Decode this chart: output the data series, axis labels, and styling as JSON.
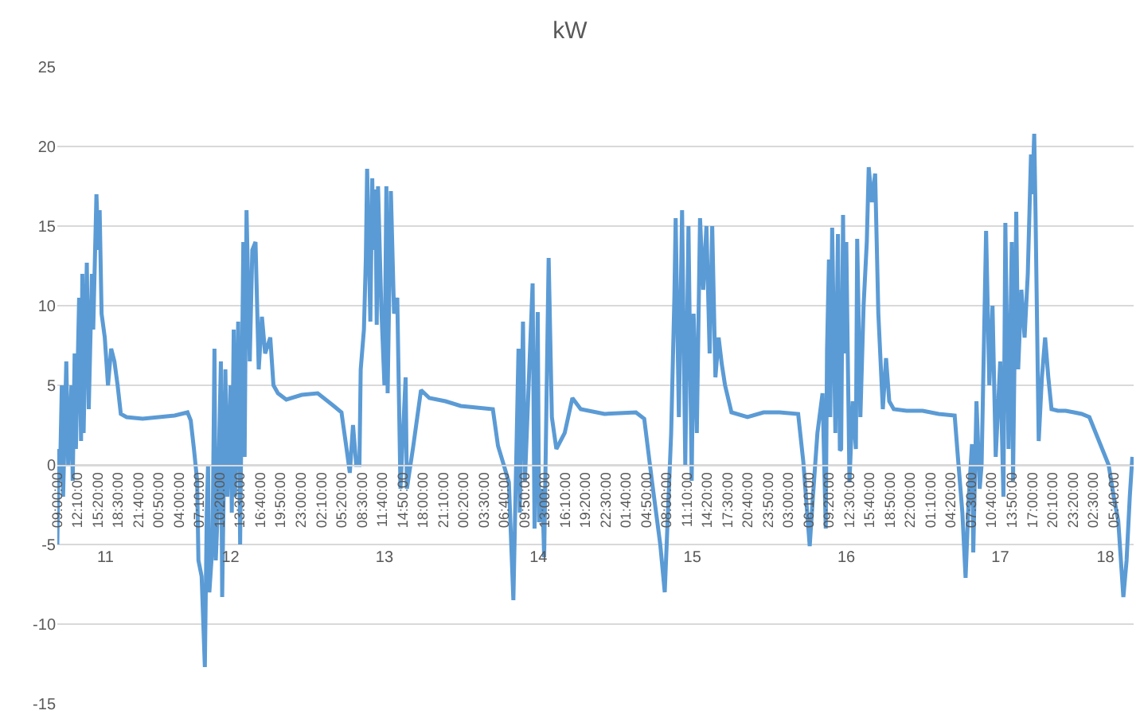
{
  "chart_data": {
    "type": "line",
    "title": "kW",
    "color": "#5b9bd5",
    "grid": "y",
    "ylim": [
      -15,
      25
    ],
    "yticks": [
      -15,
      -10,
      -5,
      0,
      5,
      10,
      15,
      20,
      25
    ],
    "xlim": [
      "--01-11T09:00",
      "--01-18T08:48"
    ],
    "xticks": [
      {
        "value": "--01-11T09:00",
        "label": "09:00:00"
      },
      {
        "value": "--01-11T12:10",
        "label": "12:10:00"
      },
      {
        "value": "--01-11T15:20",
        "label": "15:20:00"
      },
      {
        "value": "--01-11T18:30",
        "label": "18:30:00"
      },
      {
        "value": "--01-11T21:40",
        "label": "21:40:00"
      },
      {
        "value": "--01-12T00:50",
        "label": "00:50:00"
      },
      {
        "value": "--01-12T04:00",
        "label": "04:00:00"
      },
      {
        "value": "--01-12T07:10",
        "label": "07:10:00"
      },
      {
        "value": "--01-12T10:20",
        "label": "10:20:00"
      },
      {
        "value": "--01-12T13:30",
        "label": "13:30:00"
      },
      {
        "value": "--01-12T16:40",
        "label": "16:40:00"
      },
      {
        "value": "--01-12T19:50",
        "label": "19:50:00"
      },
      {
        "value": "--01-12T23:00",
        "label": "23:00:00"
      },
      {
        "value": "--01-13T02:10",
        "label": "02:10:00"
      },
      {
        "value": "--01-13T05:20",
        "label": "05:20:00"
      },
      {
        "value": "--01-13T08:30",
        "label": "08:30:00"
      },
      {
        "value": "--01-13T11:40",
        "label": "11:40:00"
      },
      {
        "value": "--01-13T14:50",
        "label": "14:50:00"
      },
      {
        "value": "--01-13T18:00",
        "label": "18:00:00"
      },
      {
        "value": "--01-13T21:10",
        "label": "21:10:00"
      },
      {
        "value": "--01-14T00:20",
        "label": "00:20:00"
      },
      {
        "value": "--01-14T03:30",
        "label": "03:30:00"
      },
      {
        "value": "--01-14T06:40",
        "label": "06:40:00"
      },
      {
        "value": "--01-14T09:50",
        "label": "09:50:00"
      },
      {
        "value": "--01-14T13:00",
        "label": "13:00:00"
      },
      {
        "value": "--01-14T16:10",
        "label": "16:10:00"
      },
      {
        "value": "--01-14T19:20",
        "label": "19:20:00"
      },
      {
        "value": "--01-14T22:30",
        "label": "22:30:00"
      },
      {
        "value": "--01-15T01:40",
        "label": "01:40:00"
      },
      {
        "value": "--01-15T04:50",
        "label": "04:50:00"
      },
      {
        "value": "--01-15T08:00",
        "label": "08:00:00"
      },
      {
        "value": "--01-15T11:10",
        "label": "11:10:00"
      },
      {
        "value": "--01-15T14:20",
        "label": "14:20:00"
      },
      {
        "value": "--01-15T17:30",
        "label": "17:30:00"
      },
      {
        "value": "--01-15T20:40",
        "label": "20:40:00"
      },
      {
        "value": "--01-15T23:50",
        "label": "23:50:00"
      },
      {
        "value": "--01-16T03:00",
        "label": "03:00:00"
      },
      {
        "value": "--01-16T06:10",
        "label": "06:10:00"
      },
      {
        "value": "--01-16T09:20",
        "label": "09:20:00"
      },
      {
        "value": "--01-16T12:30",
        "label": "12:30:00"
      },
      {
        "value": "--01-16T15:40",
        "label": "15:40:00"
      },
      {
        "value": "--01-16T18:50",
        "label": "18:50:00"
      },
      {
        "value": "--01-16T22:00",
        "label": "22:00:00"
      },
      {
        "value": "--01-17T01:10",
        "label": "01:10:00"
      },
      {
        "value": "--01-17T04:20",
        "label": "04:20:00"
      },
      {
        "value": "--01-17T07:30",
        "label": "07:30:00"
      },
      {
        "value": "--01-17T10:40",
        "label": "10:40:00"
      },
      {
        "value": "--01-17T13:50",
        "label": "13:50:00"
      },
      {
        "value": "--01-17T17:00",
        "label": "17:00:00"
      },
      {
        "value": "--01-17T20:10",
        "label": "20:10:00"
      },
      {
        "value": "--01-17T23:20",
        "label": "23:20:00"
      },
      {
        "value": "--01-18T02:30",
        "label": "02:30:00"
      },
      {
        "value": "--01-18T05:40",
        "label": "05:40:00"
      }
    ],
    "x2lim": [
      "--01-11T09:00",
      "--01-18T08:48"
    ],
    "x2ticks": [
      {
        "value": "--01-11T16:30",
        "label": "11"
      },
      {
        "value": "--01-12T12:00",
        "label": "12"
      },
      {
        "value": "--01-13T12:00",
        "label": "13"
      },
      {
        "value": "--01-14T12:00",
        "label": "14"
      },
      {
        "value": "--01-15T12:00",
        "label": "15"
      },
      {
        "value": "--01-16T12:00",
        "label": "16"
      },
      {
        "value": "--01-17T12:00",
        "label": "17"
      },
      {
        "value": "--01-18T04:24",
        "label": "18"
      }
    ],
    "x": [
      "--01-11T09:00",
      "--01-11T09:12",
      "--01-11T09:24",
      "--01-11T09:42",
      "--01-11T09:54",
      "--01-11T10:24",
      "--01-11T10:42",
      "--01-11T11:12",
      "--01-11T11:24",
      "--01-11T11:42",
      "--01-11T11:54",
      "--01-11T12:24",
      "--01-11T12:42",
      "--01-11T12:54",
      "--01-11T13:06",
      "--01-11T13:36",
      "--01-11T13:54",
      "--01-11T14:24",
      "--01-11T14:36",
      "--01-11T15:06",
      "--01-11T15:24",
      "--01-11T15:36",
      "--01-11T15:54",
      "--01-11T16:24",
      "--01-11T16:54",
      "--01-11T17:24",
      "--01-11T17:54",
      "--01-11T18:24",
      "--01-11T18:54",
      "--01-11T19:48",
      "--01-11T22:18",
      "--01-12T00:48",
      "--01-12T03:18",
      "--01-12T05:18",
      "--01-12T05:48",
      "--01-12T06:18",
      "--01-12T06:48",
      "--01-12T07:00",
      "--01-12T07:30",
      "--01-12T08:00",
      "--01-12T08:18",
      "--01-12T08:30",
      "--01-12T08:42",
      "--01-12T09:12",
      "--01-12T09:30",
      "--01-12T09:42",
      "--01-12T10:00",
      "--01-12T10:30",
      "--01-12T10:42",
      "--01-12T11:12",
      "--01-12T11:30",
      "--01-12T12:00",
      "--01-12T12:12",
      "--01-12T12:30",
      "--01-12T12:42",
      "--01-12T13:12",
      "--01-12T13:30",
      "--01-12T14:00",
      "--01-12T14:12",
      "--01-12T14:30",
      "--01-12T15:00",
      "--01-12T15:24",
      "--01-12T15:54",
      "--01-12T16:24",
      "--01-12T16:54",
      "--01-12T17:24",
      "--01-12T18:12",
      "--01-12T18:42",
      "--01-12T19:24",
      "--01-12T20:42",
      "--01-12T23:06",
      "--01-13T01:36",
      "--01-13T04:06",
      "--01-13T05:18",
      "--01-13T06:06",
      "--01-13T06:36",
      "--01-13T07:06",
      "--01-13T07:36",
      "--01-13T08:06",
      "--01-13T08:18",
      "--01-13T08:48",
      "--01-13T09:06",
      "--01-13T09:18",
      "--01-13T09:48",
      "--01-13T10:06",
      "--01-13T10:18",
      "--01-13T10:36",
      "--01-13T10:48",
      "--01-13T11:00",
      "--01-13T11:30",
      "--01-13T12:00",
      "--01-13T12:18",
      "--01-13T12:30",
      "--01-13T13:00",
      "--01-13T13:30",
      "--01-13T14:00",
      "--01-13T14:30",
      "--01-13T15:18",
      "--01-13T15:30",
      "--01-13T16:30",
      "--01-13T17:42",
      "--01-13T19:00",
      "--01-13T21:30",
      "--01-13T23:54",
      "--01-14T04:54",
      "--01-14T05:42",
      "--01-14T06:36",
      "--01-14T07:24",
      "--01-14T08:06",
      "--01-14T08:54",
      "--01-14T09:06",
      "--01-14T09:36",
      "--01-14T09:54",
      "--01-14T11:06",
      "--01-14T11:24",
      "--01-14T11:54",
      "--01-14T12:06",
      "--01-14T12:36",
      "--01-14T12:54",
      "--01-14T13:36",
      "--01-14T14:06",
      "--01-14T14:48",
      "--01-14T16:06",
      "--01-14T17:18",
      "--01-14T18:36",
      "--01-14T22:18",
      "--01-15T03:12",
      "--01-15T04:30",
      "--01-15T05:42",
      "--01-15T07:00",
      "--01-15T07:42",
      "--01-15T08:12",
      "--01-15T08:42",
      "--01-15T09:12",
      "--01-15T09:24",
      "--01-15T09:54",
      "--01-15T10:24",
      "--01-15T10:54",
      "--01-15T11:24",
      "--01-15T11:54",
      "--01-15T12:12",
      "--01-15T12:42",
      "--01-15T13:12",
      "--01-15T13:42",
      "--01-15T14:12",
      "--01-15T14:42",
      "--01-15T15:06",
      "--01-15T15:36",
      "--01-15T16:06",
      "--01-15T16:36",
      "--01-15T17:06",
      "--01-15T18:06",
      "--01-15T20:36",
      "--01-15T23:06",
      "--01-16T01:36",
      "--01-16T04:30",
      "--01-16T05:18",
      "--01-16T06:18",
      "--01-16T06:48",
      "--01-16T07:30",
      "--01-16T08:18",
      "--01-16T08:48",
      "--01-16T09:00",
      "--01-16T09:18",
      "--01-16T09:30",
      "--01-16T09:48",
      "--01-16T10:18",
      "--01-16T10:42",
      "--01-16T11:00",
      "--01-16T11:12",
      "--01-16T11:30",
      "--01-16T11:42",
      "--01-16T12:00",
      "--01-16T12:30",
      "--01-16T13:00",
      "--01-16T13:30",
      "--01-16T13:42",
      "--01-16T14:12",
      "--01-16T14:42",
      "--01-16T15:12",
      "--01-16T15:30",
      "--01-16T16:00",
      "--01-16T16:30",
      "--01-16T17:00",
      "--01-16T17:42",
      "--01-16T18:12",
      "--01-16T18:42",
      "--01-16T19:24",
      "--01-16T21:24",
      "--01-16T23:54",
      "--01-17T02:24",
      "--01-17T04:54",
      "--01-17T05:24",
      "--01-17T06:06",
      "--01-17T06:36",
      "--01-17T07:06",
      "--01-17T07:36",
      "--01-17T07:48",
      "--01-17T08:18",
      "--01-17T08:48",
      "--01-17T09:06",
      "--01-17T09:48",
      "--01-17T10:18",
      "--01-17T10:48",
      "--01-17T11:18",
      "--01-17T12:00",
      "--01-17T12:30",
      "--01-17T12:48",
      "--01-17T13:18",
      "--01-17T13:48",
      "--01-17T14:00",
      "--01-17T14:30",
      "--01-17T14:48",
      "--01-17T15:18",
      "--01-17T15:48",
      "--01-17T16:18",
      "--01-17T16:48",
      "--01-17T17:00",
      "--01-17T17:18",
      "--01-17T17:30",
      "--01-17T18:00",
      "--01-17T18:30",
      "--01-17T19:00",
      "--01-17T19:30",
      "--01-17T20:00",
      "--01-17T21:00",
      "--01-17T22:12",
      "--01-17T23:30",
      "--01-18T00:42",
      "--01-18T01:54",
      "--01-18T04:54",
      "--01-18T05:42",
      "--01-18T06:24",
      "--01-18T07:12",
      "--01-18T07:42",
      "--01-18T08:12",
      "--01-18T08:36"
    ],
    "values": [
      -5,
      1,
      -1,
      5,
      -2,
      6.5,
      0,
      5,
      -1,
      7,
      1,
      10.5,
      1.5,
      12,
      2,
      12.7,
      3.5,
      12,
      8.5,
      17,
      13.5,
      16,
      9.5,
      8,
      5,
      7.3,
      6.5,
      5,
      3.2,
      3,
      2.9,
      3,
      3.1,
      3.3,
      2.8,
      1,
      -1,
      -6,
      -7,
      -12.7,
      -3,
      0,
      -8,
      -5,
      7.3,
      -6,
      -3,
      6.5,
      -8.3,
      6,
      -2,
      5,
      -3,
      8.5,
      -2,
      9,
      -5,
      14,
      0.5,
      16,
      6.5,
      13.5,
      14,
      6,
      9.3,
      7,
      8,
      5,
      4.5,
      4.1,
      4.4,
      4.5,
      3.7,
      3.3,
      1,
      -0.5,
      2.5,
      0,
      0,
      6,
      8.5,
      13,
      18.6,
      9,
      18,
      13.5,
      17.3,
      8.8,
      17.5,
      10,
      5,
      17.5,
      4.5,
      17.2,
      9.5,
      10.5,
      -1.5,
      5.5,
      -1.5,
      1.2,
      4.7,
      4.2,
      4,
      3.7,
      3.5,
      1.2,
      0,
      -1.1,
      -8.5,
      7.3,
      -3,
      9,
      -1,
      11.4,
      -4,
      9.6,
      -3.6,
      -1.5,
      -5.8,
      13,
      3,
      1,
      2,
      4.2,
      3.5,
      3.2,
      3.3,
      2.9,
      -1,
      -5,
      -8,
      -3,
      2,
      10.5,
      15.5,
      3,
      16,
      0,
      15,
      -1,
      9.5,
      2,
      15.5,
      11,
      15,
      7,
      15,
      5.5,
      8,
      6.3,
      5,
      3.3,
      3,
      3.3,
      3.3,
      3.2,
      0.2,
      -5.1,
      -2,
      2,
      4.5,
      -4,
      7.2,
      12.9,
      3,
      14.9,
      2,
      14.5,
      0.9,
      1,
      15.7,
      7,
      14,
      -1.1,
      4,
      1,
      14.2,
      3,
      10,
      14,
      18.7,
      16.5,
      18.3,
      9.5,
      3.5,
      6.7,
      4,
      3.5,
      3.4,
      3.4,
      3.2,
      3.1,
      0.5,
      -3,
      -7.1,
      -2,
      1.3,
      -5.5,
      4,
      -1.5,
      0,
      14.7,
      5,
      10,
      0.5,
      6.5,
      -2,
      15.2,
      1,
      14,
      -1,
      15.9,
      6,
      11,
      8,
      12,
      19.5,
      17,
      20.8,
      16,
      1.5,
      5.5,
      8,
      5.5,
      3.5,
      3.4,
      3.4,
      3.3,
      3.2,
      3,
      0,
      -2,
      -3.5,
      -8.3,
      -6,
      -2,
      0.5
    ]
  }
}
